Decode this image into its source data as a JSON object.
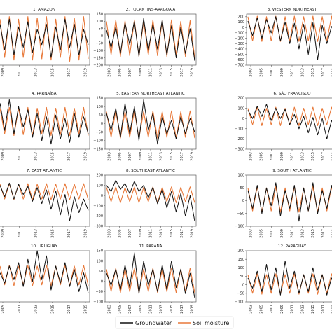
{
  "colors": {
    "groundwater": "#111111",
    "soil_moisture": "#e8793a"
  },
  "legend": [
    "Groundwater",
    "Soil moisture"
  ],
  "chart_data": [
    {
      "type": "line",
      "title": "1. AMAZON",
      "xticks": [
        "2009",
        "2011",
        "2013",
        "2015",
        "2017",
        "2019"
      ],
      "yticks": [],
      "ylim": [
        -100,
        100
      ],
      "series": [
        {
          "name": "Groundwater",
          "values": [
            60,
            -40,
            80,
            -60,
            50,
            -30,
            70,
            -50,
            40,
            -20,
            60,
            -70,
            50,
            -40,
            80,
            -30,
            60,
            -60,
            40,
            -20
          ]
        },
        {
          "name": "Soil moisture",
          "values": [
            80,
            -70,
            90,
            -80,
            80,
            -70,
            90,
            -80,
            85,
            -75,
            90,
            -80,
            80,
            -70,
            90,
            -85,
            85,
            -80,
            90,
            -75
          ]
        }
      ]
    },
    {
      "type": "line",
      "title": "2. TOCANTINS-ARAGUAIA",
      "xticks": [
        "2003",
        "2005",
        "2007",
        "2009",
        "2011",
        "2013",
        "2015",
        "2017",
        "2019"
      ],
      "yticks": [
        "150",
        "100",
        "50",
        "0",
        "−50",
        "−100",
        "−150",
        "−200"
      ],
      "ylim": [
        -200,
        150
      ],
      "series": [
        {
          "name": "Groundwater",
          "values": [
            40,
            -80,
            60,
            -120,
            90,
            -60,
            100,
            -140,
            120,
            -100,
            80,
            -90,
            110,
            -130,
            70,
            -150,
            60,
            -120,
            50,
            -170
          ]
        },
        {
          "name": "Soil moisture",
          "values": [
            100,
            -130,
            110,
            -140,
            105,
            -135,
            110,
            -140,
            100,
            -130,
            110,
            -135,
            105,
            -140,
            110,
            -130,
            100,
            -140,
            105,
            -150
          ]
        }
      ]
    },
    {
      "type": "line",
      "title": "3. WESTERN NORTHEAST",
      "xticks": [
        "2003",
        "2005",
        "2007",
        "2009",
        "2011",
        "2013",
        "2015",
        "2017",
        "2019"
      ],
      "yticks": [
        "200",
        "100",
        "0",
        "−100",
        "−200",
        "−300",
        "−400",
        "−500",
        "−600",
        "−700"
      ],
      "ylim": [
        -700,
        250
      ],
      "series": [
        {
          "name": "Groundwater",
          "values": [
            120,
            -150,
            180,
            -200,
            150,
            -100,
            200,
            -250,
            100,
            -300,
            80,
            -400,
            60,
            -500,
            90,
            -600,
            40,
            -300,
            20,
            -150
          ]
        },
        {
          "name": "Soil moisture",
          "values": [
            200,
            -250,
            210,
            -260,
            200,
            -250,
            210,
            -260,
            200,
            -250,
            210,
            -260,
            200,
            -250,
            210,
            -260,
            200,
            -250,
            210,
            -260
          ]
        }
      ]
    },
    {
      "type": "line",
      "title": "4. PARNAÍBA",
      "xticks": [
        "2009",
        "2011",
        "2013",
        "2015",
        "2017",
        "2019"
      ],
      "yticks": [],
      "ylim": [
        -150,
        150
      ],
      "series": [
        {
          "name": "Groundwater",
          "values": [
            120,
            -40,
            140,
            -60,
            100,
            -20,
            80,
            -80,
            60,
            -100,
            40,
            -120,
            50,
            -90,
            30,
            -110,
            60,
            -80,
            40,
            -60
          ]
        },
        {
          "name": "Soil moisture",
          "values": [
            90,
            -60,
            95,
            -70,
            90,
            -65,
            95,
            -70,
            90,
            -60,
            95,
            -70,
            90,
            -65,
            95,
            -70,
            90,
            -60,
            95,
            -70
          ]
        }
      ]
    },
    {
      "type": "line",
      "title": "5. EASTERN NORTHEAST ATLANTIC",
      "xticks": [
        "2003",
        "2005",
        "2007",
        "2009",
        "2011",
        "2013",
        "2015",
        "2017",
        "2019"
      ],
      "yticks": [
        "150",
        "100",
        "50",
        "0",
        "−50",
        "−100",
        "−150"
      ],
      "ylim": [
        -150,
        150
      ],
      "series": [
        {
          "name": "Groundwater",
          "values": [
            60,
            -40,
            90,
            -80,
            120,
            -60,
            100,
            -100,
            140,
            -40,
            60,
            -120,
            40,
            -60,
            20,
            -90,
            40,
            -60,
            30,
            -50
          ]
        },
        {
          "name": "Soil moisture",
          "values": [
            70,
            -80,
            75,
            -85,
            70,
            -80,
            75,
            -85,
            70,
            -80,
            75,
            -85,
            70,
            -80,
            75,
            -85,
            70,
            -80,
            75,
            -85
          ]
        }
      ]
    },
    {
      "type": "line",
      "title": "6. SÃO FRANCISCO",
      "xticks": [
        "2003",
        "2005",
        "2007",
        "2009",
        "2011",
        "2013",
        "2015",
        "2017",
        "2019"
      ],
      "yticks": [
        "200",
        "100",
        "0",
        "−100",
        "−200",
        "−300"
      ],
      "ylim": [
        -300,
        200
      ],
      "series": [
        {
          "name": "Groundwater",
          "values": [
            80,
            0,
            120,
            20,
            140,
            -20,
            100,
            0,
            90,
            -60,
            40,
            -100,
            20,
            -140,
            10,
            -160,
            0,
            -200,
            -20,
            -100
          ]
        },
        {
          "name": "Soil moisture",
          "values": [
            100,
            -60,
            110,
            -70,
            100,
            -60,
            110,
            -70,
            100,
            -60,
            110,
            -70,
            100,
            -60,
            110,
            -70,
            100,
            -60,
            110,
            -70
          ]
        }
      ]
    },
    {
      "type": "line",
      "title": "7. EAST ATLANTIC",
      "xticks": [
        "2009",
        "2011",
        "2013",
        "2015",
        "2017",
        "2019"
      ],
      "yticks": [],
      "ylim": [
        -300,
        150
      ],
      "series": [
        {
          "name": "Groundwater",
          "values": [
            60,
            -40,
            80,
            -60,
            70,
            -20,
            50,
            -80,
            40,
            -100,
            20,
            -150,
            10,
            -200,
            -20,
            -250,
            -40,
            -180,
            -60,
            -160
          ]
        },
        {
          "name": "Soil moisture",
          "values": [
            70,
            -60,
            75,
            -65,
            70,
            -60,
            75,
            -65,
            70,
            -60,
            75,
            -65,
            70,
            -60,
            75,
            -65,
            70,
            -60,
            75,
            -65
          ]
        }
      ]
    },
    {
      "type": "line",
      "title": "8. SOUTHEAST ATLANTIC",
      "xticks": [
        "2003",
        "2005",
        "2007",
        "2009",
        "2011",
        "2013",
        "2015",
        "2017",
        "2019"
      ],
      "yticks": [
        "200",
        "100",
        "0",
        "−100",
        "−200",
        "−300"
      ],
      "ylim": [
        -300,
        200
      ],
      "series": [
        {
          "name": "Groundwater",
          "values": [
            100,
            40,
            150,
            60,
            120,
            20,
            140,
            40,
            100,
            -20,
            80,
            -80,
            60,
            -120,
            40,
            -160,
            20,
            -200,
            0,
            -250
          ]
        },
        {
          "name": "Soil moisture",
          "values": [
            80,
            -60,
            85,
            -70,
            80,
            -60,
            85,
            -70,
            80,
            -60,
            85,
            -70,
            80,
            -60,
            85,
            -70,
            80,
            -60,
            85,
            -70
          ]
        }
      ]
    },
    {
      "type": "line",
      "title": "9. SOUTH ATLANTIC",
      "xticks": [
        "2003",
        "2005",
        "2007",
        "2009",
        "2011",
        "2013",
        "2015",
        "2017",
        "2019"
      ],
      "yticks": [
        "100",
        "50",
        "0",
        "−50",
        "−100"
      ],
      "ylim": [
        -100,
        100
      ],
      "series": [
        {
          "name": "Groundwater",
          "values": [
            40,
            -30,
            60,
            -50,
            50,
            -20,
            70,
            -60,
            40,
            -30,
            60,
            -80,
            50,
            -40,
            70,
            -50,
            40,
            -30,
            60,
            -40
          ]
        },
        {
          "name": "Soil moisture",
          "values": [
            50,
            -40,
            55,
            -45,
            50,
            -40,
            55,
            -45,
            50,
            -40,
            55,
            -45,
            50,
            -40,
            55,
            -45,
            50,
            -40,
            55,
            -45
          ]
        }
      ]
    },
    {
      "type": "line",
      "title": "10. URUGUAY",
      "xticks": [
        "2009",
        "2011",
        "2013",
        "2015",
        "2017",
        "2019"
      ],
      "yticks": [],
      "ylim": [
        -150,
        150
      ],
      "series": [
        {
          "name": "Groundwater",
          "values": [
            20,
            -40,
            60,
            -20,
            80,
            -60,
            100,
            -30,
            150,
            -20,
            120,
            -80,
            60,
            -40,
            80,
            -60,
            40,
            -90,
            20,
            -100
          ]
        },
        {
          "name": "Soil moisture",
          "values": [
            60,
            -50,
            65,
            -55,
            60,
            -50,
            65,
            -55,
            60,
            -50,
            65,
            -55,
            60,
            -50,
            65,
            -55,
            60,
            -50,
            65,
            -55
          ]
        }
      ]
    },
    {
      "type": "line",
      "title": "11. PARANÁ",
      "xticks": [
        "2003",
        "2005",
        "2007",
        "2009",
        "2011",
        "2013",
        "2015",
        "2017",
        "2019"
      ],
      "yticks": [
        "150",
        "100",
        "50",
        "0",
        "−50",
        "−100"
      ],
      "ylim": [
        -100,
        150
      ],
      "series": [
        {
          "name": "Groundwater",
          "values": [
            40,
            -20,
            60,
            -40,
            80,
            -30,
            140,
            -60,
            100,
            -20,
            60,
            -50,
            80,
            -40,
            100,
            -30,
            60,
            -60,
            40,
            -80
          ]
        },
        {
          "name": "Soil moisture",
          "values": [
            60,
            -50,
            65,
            -55,
            60,
            -50,
            65,
            -55,
            60,
            -50,
            65,
            -55,
            60,
            -50,
            65,
            -55,
            60,
            -50,
            65,
            -55
          ]
        }
      ]
    },
    {
      "type": "line",
      "title": "12. PARAGUAY",
      "xticks": [
        "2003",
        "2005",
        "2007",
        "2009",
        "2011",
        "2013",
        "2015",
        "2017",
        "2019"
      ],
      "yticks": [
        "200",
        "150",
        "100",
        "50",
        "0",
        "−50",
        "−100"
      ],
      "ylim": [
        -100,
        200
      ],
      "series": [
        {
          "name": "Groundwater",
          "values": [
            40,
            -20,
            80,
            -40,
            120,
            -30,
            100,
            -60,
            140,
            -20,
            80,
            -50,
            60,
            -40,
            100,
            -30,
            60,
            -60,
            40,
            -50
          ]
        },
        {
          "name": "Soil moisture",
          "values": [
            60,
            -50,
            65,
            -55,
            60,
            -50,
            65,
            -55,
            60,
            -50,
            65,
            -55,
            60,
            -50,
            65,
            -55,
            60,
            -50,
            65,
            -55
          ]
        }
      ]
    }
  ]
}
